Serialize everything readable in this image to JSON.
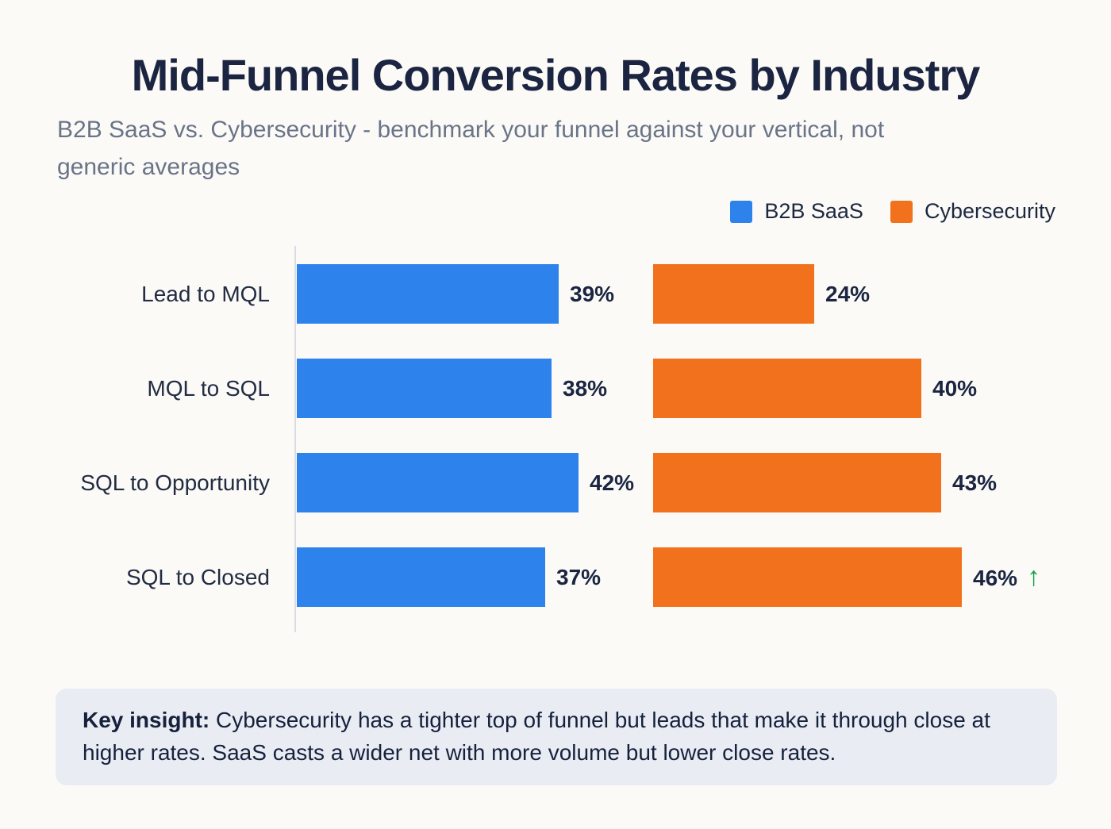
{
  "header": {
    "title": "Mid-Funnel Conversion Rates by Industry",
    "subtitle": "B2B SaaS vs. Cybersecurity - benchmark your funnel against your vertical, not generic averages"
  },
  "legend": {
    "items": [
      {
        "label": "B2B SaaS",
        "color": "#2e82ec"
      },
      {
        "label": "Cybersecurity",
        "color": "#f2711c"
      }
    ]
  },
  "chart_data": {
    "type": "bar",
    "orientation": "horizontal",
    "title": "Mid-Funnel Conversion Rates by Industry",
    "categories": [
      "Lead to MQL",
      "MQL to SQL",
      "SQL to Opportunity",
      "SQL to Closed"
    ],
    "series": [
      {
        "name": "B2B SaaS",
        "color": "#2e82ec",
        "values": [
          39,
          38,
          42,
          37
        ]
      },
      {
        "name": "Cybersecurity",
        "color": "#f2711c",
        "values": [
          24,
          40,
          43,
          46
        ]
      }
    ],
    "value_suffix": "%",
    "xlim": [
      0,
      50
    ],
    "grid": false,
    "legend_position": "top-right",
    "annotations": [
      {
        "category": "SQL to Closed",
        "series": "Cybersecurity",
        "icon": "up-arrow",
        "color": "#16a34a",
        "glyph": "↑"
      }
    ]
  },
  "insight": {
    "label": "Key insight:",
    "text": "Cybersecurity has a tighter top of funnel but leads that make it through close at higher rates. SaaS casts a wider net with more volume but lower close rates."
  },
  "colors": {
    "background": "#fbfaf7",
    "title_text": "#1b2541",
    "subtitle_text": "#6a7488",
    "axis_line": "#d9dce3",
    "insight_background": "#e9ecf3",
    "b2b_saas": "#2e82ec",
    "cybersecurity": "#f2711c",
    "up_arrow": "#16a34a"
  }
}
